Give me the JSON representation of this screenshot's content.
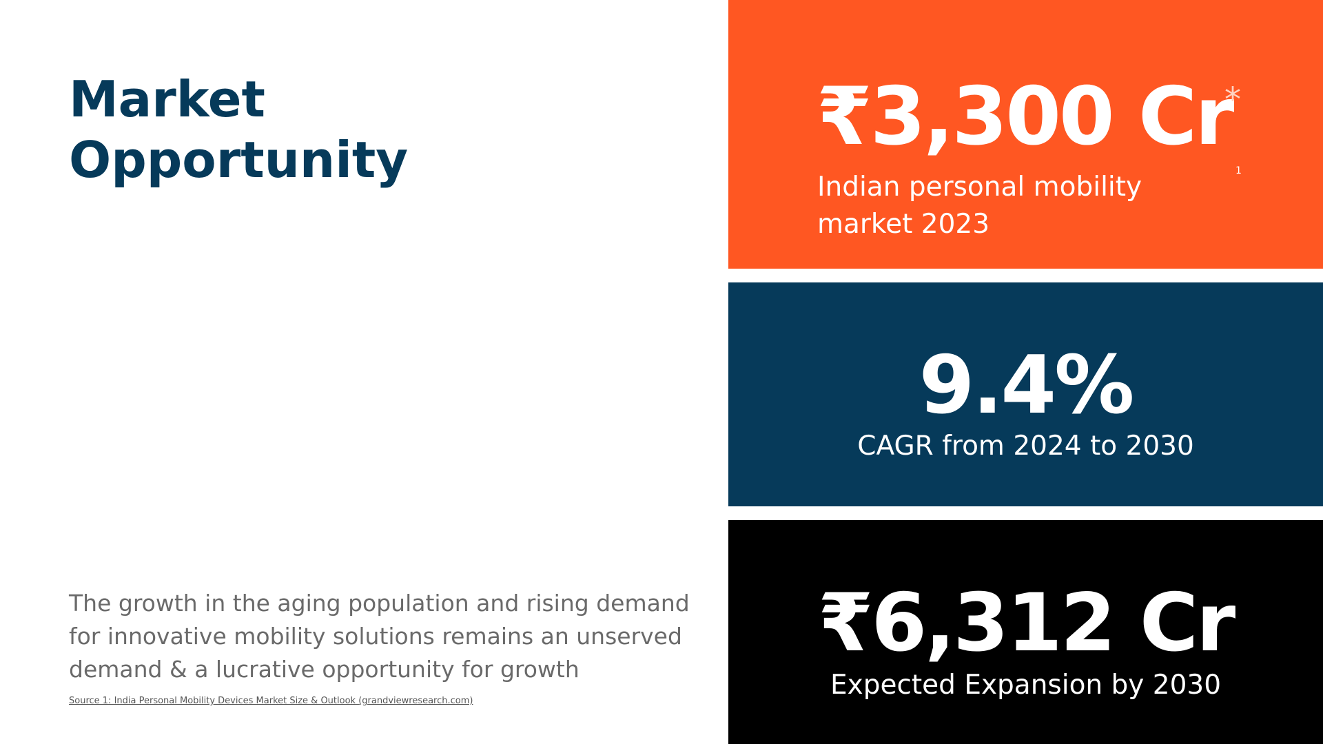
{
  "title": {
    "line1": "Market",
    "line2": "Opportunity"
  },
  "description": "The growth in the aging population and rising demand for innovative mobility solutions remains an unserved demand & a lucrative opportunity for growth",
  "source": "Source 1: India Personal Mobility Devices Market Size & Outlook (grandviewresearch.com)",
  "stats": {
    "market": {
      "value": "₹3,300 Cr",
      "asterisk": "*",
      "label": "Indian personal mobility market 2023",
      "footnote": "1"
    },
    "cagr": {
      "value": "9.4%",
      "label": "CAGR from 2024 to 2030"
    },
    "expansion": {
      "value": "₹6,312 Cr",
      "label": "Expected Expansion by 2030"
    }
  },
  "colors": {
    "title": "#063a5a",
    "orange_panel": "#ff5722",
    "navy_panel": "#063a5a",
    "black_panel": "#000000"
  }
}
